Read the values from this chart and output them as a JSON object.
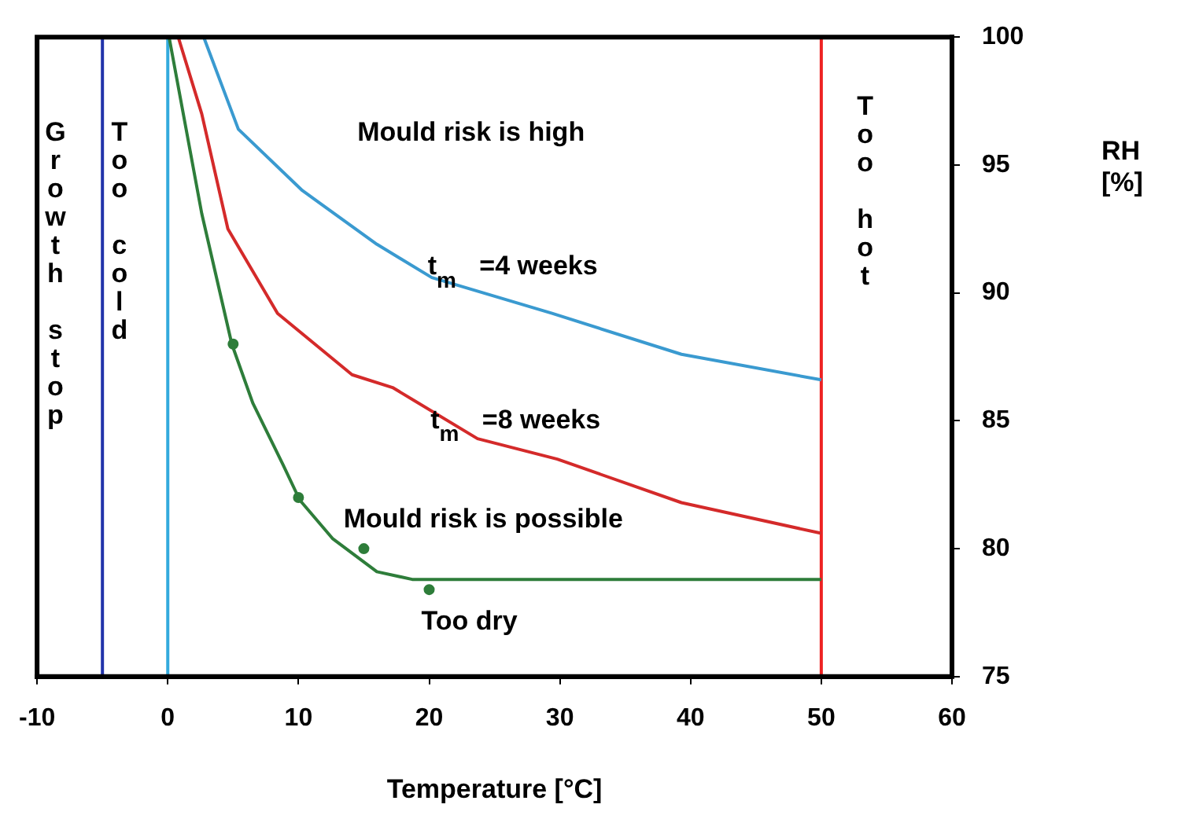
{
  "chart_data": {
    "type": "line",
    "xlabel": "Temperature [°C]",
    "ylabel": "RH [%]",
    "xlim": [
      -10,
      60
    ],
    "xticks": [
      -10,
      0,
      10,
      20,
      30,
      40,
      50,
      60
    ],
    "ylim": [
      75,
      100
    ],
    "yticks": [
      75,
      80,
      85,
      90,
      95,
      100
    ],
    "grid": false,
    "legend": false,
    "marker": "none",
    "line_style": "solid",
    "series": [
      {
        "color": "#3a9ad0",
        "x": [
          2.75,
          5.4,
          10.3,
          16.0,
          20.2,
          29.4,
          39.3,
          50
        ],
        "values": [
          100,
          96.4,
          94.0,
          91.9,
          90.6,
          89.2,
          87.6,
          86.6
        ]
      },
      {
        "color": "#d42a2a",
        "x": [
          0.8,
          2.6,
          4.6,
          8.4,
          14.1,
          17.2,
          23.7,
          29.8,
          39.3,
          50
        ],
        "values": [
          100,
          97.0,
          92.5,
          89.2,
          86.8,
          86.3,
          84.3,
          83.5,
          81.8,
          80.6
        ]
      },
      {
        "color": "#2e7d3a",
        "x": [
          0.1,
          2.6,
          4.9,
          6.5,
          8.8,
          10.1,
          12.6,
          16.0,
          18.7,
          50
        ],
        "values": [
          100,
          93.1,
          88.0,
          85.7,
          83.3,
          81.9,
          80.4,
          79.1,
          78.8,
          78.8
        ]
      },
      {
        "type": "scatter",
        "marker": "circle",
        "color": "#2e7d3a",
        "x": [
          5,
          10,
          15,
          20
        ],
        "values": [
          88,
          82,
          80,
          78.4
        ]
      }
    ],
    "ref_lines": [
      {
        "axis": "x",
        "value": -5,
        "color": "#2233aa"
      },
      {
        "axis": "x",
        "value": 0,
        "color": "#33aadd"
      },
      {
        "axis": "x",
        "value": 50,
        "color": "#ee2222"
      }
    ],
    "annotations": [
      "Growth stop",
      "Too cold",
      "Too hot",
      "Mould risk is high",
      "t$_{m}$ =4 weeks",
      "t$_{m}$ =8 weeks",
      "Mould risk is possible",
      "Too dry"
    ]
  }
}
